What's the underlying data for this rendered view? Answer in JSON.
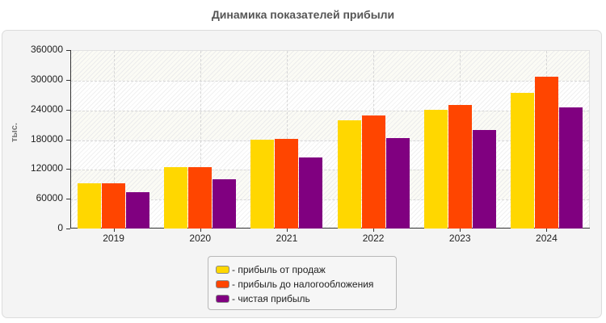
{
  "title": "Динамика показателей прибыли",
  "chart_data": {
    "type": "bar",
    "title": "Динамика показателей прибыли",
    "xlabel": "",
    "ylabel": "тыс.",
    "ylim": [
      0,
      360000
    ],
    "yticks": [
      "0",
      "60000",
      "120000",
      "180000",
      "240000",
      "300000",
      "360000"
    ],
    "ytick_values": [
      0,
      60000,
      120000,
      180000,
      240000,
      300000,
      360000
    ],
    "categories": [
      "2019",
      "2020",
      "2021",
      "2022",
      "2023",
      "2024"
    ],
    "series": [
      {
        "name": "прибыль от продаж",
        "color": "#FFD700",
        "values": [
          91000,
          124000,
          180000,
          219000,
          239000,
          273000
        ]
      },
      {
        "name": "прибыль до налогообложения",
        "color": "#FF4500",
        "values": [
          91000,
          124000,
          181000,
          228000,
          250000,
          306000
        ]
      },
      {
        "name": "чистая прибыль",
        "color": "#800080",
        "values": [
          73000,
          99000,
          144000,
          183000,
          199000,
          245000
        ]
      }
    ],
    "grid": true,
    "legend_position": "bottom"
  },
  "legend": {
    "items": [
      {
        "label": "- прибыль от продаж",
        "color": "#FFD700"
      },
      {
        "label": "- прибыль до налогообложения",
        "color": "#FF4500"
      },
      {
        "label": "- чистая прибыль",
        "color": "#800080"
      }
    ]
  }
}
